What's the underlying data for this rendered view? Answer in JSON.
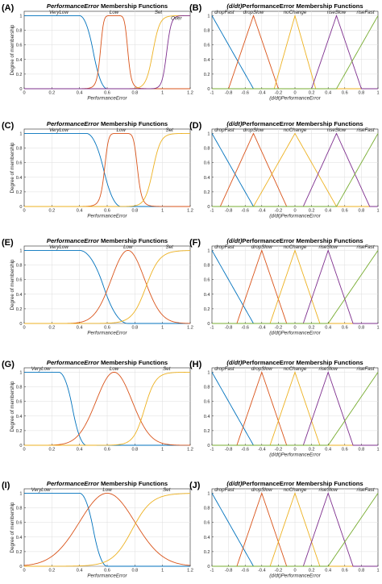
{
  "colors": [
    "#0072BD",
    "#D95319",
    "#EDB120",
    "#7E2F8E",
    "#77AC30"
  ],
  "chart_data": [
    {
      "panel": "(A)",
      "type": "line",
      "title_italic": "PerformanceError",
      "title_rest": " Membership Functions",
      "xlabel": "PerformanceError",
      "ylabel": "Degree of membership",
      "xlim": [
        0,
        1.2
      ],
      "ylim": [
        0,
        1
      ],
      "xticks": [
        "0",
        "0.2",
        "0.4",
        "0.6",
        "0.8",
        "1",
        "1.2"
      ],
      "yticks": [
        "0",
        "0.2",
        "0.4",
        "0.6",
        "0.8",
        "1"
      ],
      "grid": true,
      "series": [
        {
          "name": "VeryLow",
          "mf": "zmf",
          "params": [
            0.4,
            0.6
          ],
          "label_x": 0.25
        },
        {
          "name": "Low",
          "mf": "gbell",
          "params": [
            0.1,
            4,
            0.65
          ],
          "label_x": 0.65
        },
        {
          "name": "Set",
          "mf": "sig",
          "params": [
            40,
            0.93
          ],
          "label_x": 0.97
        },
        {
          "name": "Over",
          "mf": "sig",
          "params": [
            60,
            1.03
          ],
          "label_x": 1.1,
          "label_y": 0.92
        }
      ]
    },
    {
      "panel": "(B)",
      "type": "line",
      "title_italic": "(d/dt)",
      "title_rest": "PerformanceError Membership Functions",
      "xlabel": "(d/dt)PerformanceError",
      "ylabel": "",
      "xlim": [
        -1,
        1
      ],
      "ylim": [
        0,
        1
      ],
      "xticks": [
        "-1",
        "-0.8",
        "-0.6",
        "-0.4",
        "-0.2",
        "0",
        "0.2",
        "0.4",
        "0.6",
        "0.8",
        "1"
      ],
      "yticks": [
        "0",
        "0.2",
        "0.4",
        "0.6",
        "0.8",
        "1"
      ],
      "grid": true,
      "series": [
        {
          "name": "dropFast",
          "mf": "trap",
          "params": [
            -2,
            -1,
            -1,
            -0.5
          ],
          "label_x": -0.85
        },
        {
          "name": "dropSlow",
          "mf": "tri",
          "params": [
            -0.8,
            -0.5,
            -0.2
          ],
          "label_x": -0.5
        },
        {
          "name": "noChange",
          "mf": "tri",
          "params": [
            -0.25,
            0,
            0.25
          ],
          "label_x": 0.0
        },
        {
          "name": "riseSlow",
          "mf": "tri",
          "params": [
            0.2,
            0.5,
            0.8
          ],
          "label_x": 0.5
        },
        {
          "name": "riseFast",
          "mf": "trap",
          "params": [
            0.5,
            1,
            1,
            2
          ],
          "label_x": 0.85
        }
      ]
    },
    {
      "panel": "(C)",
      "type": "line",
      "title_italic": "PerformanceError",
      "title_rest": " Membership Functions",
      "xlabel": "PerformanceError",
      "ylabel": "Degree of membership",
      "xlim": [
        0,
        1.2
      ],
      "ylim": [
        0,
        1
      ],
      "xticks": [
        "0",
        "0.2",
        "0.4",
        "0.6",
        "0.8",
        "1",
        "1.2"
      ],
      "yticks": [
        "0",
        "0.2",
        "0.4",
        "0.6",
        "0.8",
        "1"
      ],
      "grid": true,
      "series": [
        {
          "name": "VeryLow",
          "mf": "zmf",
          "params": [
            0.45,
            0.7
          ],
          "label_x": 0.25
        },
        {
          "name": "Low",
          "mf": "gbell",
          "params": [
            0.12,
            4,
            0.7
          ],
          "label_x": 0.7
        },
        {
          "name": "Set",
          "mf": "sig",
          "params": [
            35,
            0.93
          ],
          "label_x": 1.05
        }
      ]
    },
    {
      "panel": "(D)",
      "type": "line",
      "title_italic": "(d/dt)",
      "title_rest": "PerformanceError Membership Functions",
      "xlabel": "(d/dt)PerformanceError",
      "ylabel": "",
      "xlim": [
        -1,
        1
      ],
      "ylim": [
        0,
        1
      ],
      "xticks": [
        "-1",
        "-0.8",
        "-0.6",
        "-0.4",
        "-0.2",
        "0",
        "0.2",
        "0.4",
        "0.6",
        "0.8",
        "1"
      ],
      "yticks": [
        "0",
        "0.2",
        "0.4",
        "0.6",
        "0.8",
        "1"
      ],
      "grid": true,
      "series": [
        {
          "name": "dropFast",
          "mf": "trap",
          "params": [
            -2,
            -1,
            -1,
            -0.5
          ],
          "label_x": -0.85
        },
        {
          "name": "dropSlow",
          "mf": "tri",
          "params": [
            -0.9,
            -0.5,
            -0.1
          ],
          "label_x": -0.5
        },
        {
          "name": "noChange",
          "mf": "tri",
          "params": [
            -0.5,
            0,
            0.5
          ],
          "label_x": 0.0
        },
        {
          "name": "riseSlow",
          "mf": "tri",
          "params": [
            0.1,
            0.5,
            0.9
          ],
          "label_x": 0.5
        },
        {
          "name": "riseFast",
          "mf": "trap",
          "params": [
            0.5,
            1,
            1,
            2
          ],
          "label_x": 0.85
        }
      ]
    },
    {
      "panel": "(E)",
      "type": "line",
      "title_italic": "PerformanceError",
      "title_rest": " Membership Functions",
      "xlabel": "PerformanceError",
      "ylabel": "Degree of membership",
      "xlim": [
        0,
        1.2
      ],
      "ylim": [
        0,
        1
      ],
      "xticks": [
        "0",
        "0.2",
        "0.4",
        "0.6",
        "0.8",
        "1",
        "1.2"
      ],
      "yticks": [
        "0",
        "0.2",
        "0.4",
        "0.6",
        "0.8",
        "1"
      ],
      "grid": true,
      "series": [
        {
          "name": "VeryLow",
          "mf": "zmf",
          "params": [
            0.4,
            0.75
          ],
          "label_x": 0.25
        },
        {
          "name": "Low",
          "mf": "gauss",
          "params": [
            0.12,
            0.75
          ],
          "label_x": 0.75
        },
        {
          "name": "Set",
          "mf": "sig",
          "params": [
            20,
            0.88
          ],
          "label_x": 1.05
        }
      ]
    },
    {
      "panel": "(F)",
      "type": "line",
      "title_italic": "(d/dt)",
      "title_rest": "PerformanceError Membership Functions",
      "xlabel": "(d/dt)PerformanceError",
      "ylabel": "",
      "xlim": [
        -1,
        1
      ],
      "ylim": [
        0,
        1
      ],
      "xticks": [
        "-1",
        "-0.8",
        "-0.6",
        "-0.4",
        "-0.2",
        "0",
        "0.2",
        "0.4",
        "0.6",
        "0.8",
        "1"
      ],
      "yticks": [
        "0",
        "0.2",
        "0.4",
        "0.6",
        "0.8",
        "1"
      ],
      "grid": true,
      "series": [
        {
          "name": "dropFast",
          "mf": "trap",
          "params": [
            -2,
            -1,
            -1,
            -0.5
          ],
          "label_x": -0.85
        },
        {
          "name": "dropSlow",
          "mf": "tri",
          "params": [
            -0.7,
            -0.4,
            -0.1
          ],
          "label_x": -0.4
        },
        {
          "name": "noChange",
          "mf": "tri",
          "params": [
            -0.3,
            0,
            0.3
          ],
          "label_x": 0.0
        },
        {
          "name": "riseSlow",
          "mf": "tri",
          "params": [
            0.1,
            0.4,
            0.7
          ],
          "label_x": 0.4
        },
        {
          "name": "riseFast",
          "mf": "trap",
          "params": [
            0.4,
            1,
            1,
            2
          ],
          "label_x": 0.85
        }
      ]
    },
    {
      "panel": "(G)",
      "type": "line",
      "title_italic": "PerformanceError",
      "title_rest": " Membership Functions",
      "xlabel": "",
      "ylabel": "Degree of membership",
      "xlim": [
        0,
        1.2
      ],
      "ylim": [
        0,
        1
      ],
      "xticks": [
        "0",
        "0.2",
        "0.4",
        "0.6",
        "0.8",
        "1",
        "1.2"
      ],
      "yticks": [
        "0",
        "0.2",
        "0.4",
        "0.6",
        "0.8",
        "1"
      ],
      "grid": true,
      "series": [
        {
          "name": "VeryLow",
          "mf": "zmf",
          "params": [
            0.25,
            0.45
          ],
          "label_x": 0.12
        },
        {
          "name": "Low",
          "mf": "gauss",
          "params": [
            0.13,
            0.65
          ],
          "label_x": 0.65
        },
        {
          "name": "Set",
          "mf": "sig",
          "params": [
            25,
            0.87
          ],
          "label_x": 1.03
        }
      ]
    },
    {
      "panel": "(H)",
      "type": "line",
      "title_italic": "(d/dt)",
      "title_rest": "PerformanceError Membership Functions",
      "xlabel": "(d/dt)PerformanceError",
      "ylabel": "",
      "xlim": [
        -1,
        1
      ],
      "ylim": [
        0,
        1
      ],
      "xticks": [
        "-1",
        "-0.8",
        "-0.6",
        "-0.4",
        "-0.2",
        "0",
        "0.2",
        "0.4",
        "0.6",
        "0.8",
        "1"
      ],
      "yticks": [
        "0",
        "0.2",
        "0.4",
        "0.6",
        "0.8",
        "1"
      ],
      "grid": true,
      "series": [
        {
          "name": "dropFast",
          "mf": "trap",
          "params": [
            -2,
            -1,
            -1,
            -0.5
          ],
          "label_x": -0.85
        },
        {
          "name": "dropSlow",
          "mf": "tri",
          "params": [
            -0.7,
            -0.4,
            -0.1
          ],
          "label_x": -0.4
        },
        {
          "name": "noChange",
          "mf": "tri",
          "params": [
            -0.3,
            0,
            0.3
          ],
          "label_x": 0.0
        },
        {
          "name": "riseSlow",
          "mf": "tri",
          "params": [
            0.1,
            0.4,
            0.7
          ],
          "label_x": 0.4
        },
        {
          "name": "riseFast",
          "mf": "trap",
          "params": [
            0.4,
            1,
            1,
            2
          ],
          "label_x": 0.85
        }
      ]
    },
    {
      "panel": "(I)",
      "type": "line",
      "title_italic": "PerformanceError",
      "title_rest": " Membership Functions",
      "xlabel": "PerformanceError",
      "ylabel": "Degree of membership",
      "xlim": [
        0,
        1.2
      ],
      "ylim": [
        0,
        1
      ],
      "xticks": [
        "0",
        "0.2",
        "0.4",
        "0.6",
        "0.8",
        "1",
        "1.2"
      ],
      "yticks": [
        "0",
        "0.2",
        "0.4",
        "0.6",
        "0.8",
        "1"
      ],
      "grid": true,
      "series": [
        {
          "name": "VeryLow",
          "mf": "zmf",
          "params": [
            0.4,
            0.6
          ],
          "label_x": 0.12
        },
        {
          "name": "Low",
          "mf": "gauss",
          "params": [
            0.2,
            0.6
          ],
          "label_x": 0.6
        },
        {
          "name": "Set",
          "mf": "sig",
          "params": [
            14,
            0.78
          ],
          "label_x": 1.03
        }
      ]
    },
    {
      "panel": "(J)",
      "type": "line",
      "title_italic": "(d/dt)",
      "title_rest": "PerformanceError Membership Functions",
      "xlabel": "(d/dt)PerformanceError",
      "ylabel": "",
      "xlim": [
        -1,
        1
      ],
      "ylim": [
        0,
        1
      ],
      "xticks": [
        "-1",
        "-0.8",
        "-0.6",
        "-0.4",
        "-0.2",
        "0",
        "0.2",
        "0.4",
        "0.6",
        "0.8",
        "1"
      ],
      "yticks": [
        "0",
        "0.2",
        "0.4",
        "0.6",
        "0.8",
        "1"
      ],
      "grid": true,
      "series": [
        {
          "name": "dropFast",
          "mf": "trap",
          "params": [
            -2,
            -1,
            -1,
            -0.5
          ],
          "label_x": -0.85
        },
        {
          "name": "dropSlow",
          "mf": "tri",
          "params": [
            -0.7,
            -0.4,
            -0.1
          ],
          "label_x": -0.4
        },
        {
          "name": "noChange",
          "mf": "tri",
          "params": [
            -0.3,
            0,
            0.3
          ],
          "label_x": 0.0
        },
        {
          "name": "riseSlow",
          "mf": "tri",
          "params": [
            0.1,
            0.4,
            0.7
          ],
          "label_x": 0.4
        },
        {
          "name": "riseFast",
          "mf": "trap",
          "params": [
            0.4,
            1,
            1,
            2
          ],
          "label_x": 0.85
        }
      ]
    }
  ]
}
